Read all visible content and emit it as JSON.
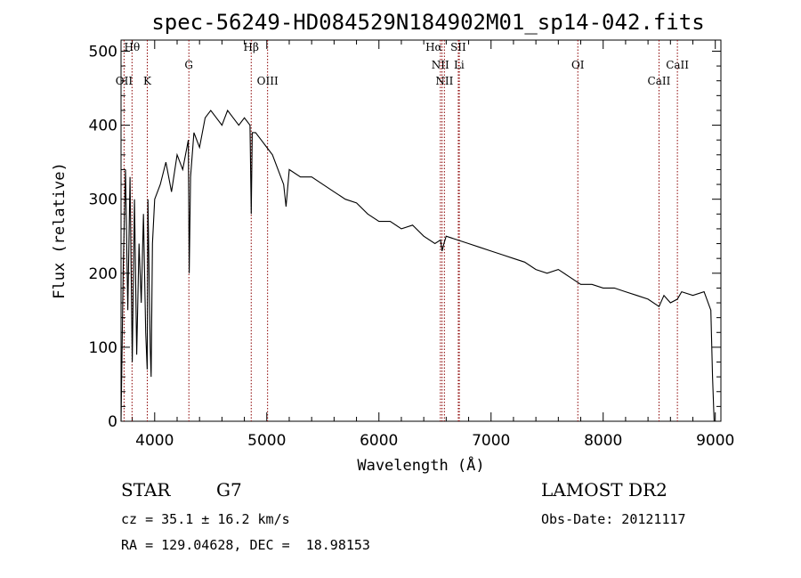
{
  "chart_data": {
    "type": "line",
    "title": "spec-56249-HD084529N184902M01_sp14-042.fits",
    "xlabel": "Wavelength (Å)",
    "ylabel": "Flux (relative)",
    "xlim": [
      3700,
      9050
    ],
    "ylim": [
      0,
      515
    ],
    "x_ticks": [
      4000,
      5000,
      6000,
      7000,
      8000,
      9000
    ],
    "y_ticks": [
      0,
      100,
      200,
      300,
      400,
      500
    ],
    "grid": false,
    "line_color": "#000000",
    "marker_color": "#8b0000",
    "series": [
      {
        "x": [
          3700,
          3720,
          3740,
          3760,
          3780,
          3800,
          3820,
          3840,
          3860,
          3880,
          3900,
          3920,
          3933,
          3940,
          3960,
          3968,
          3980,
          4000,
          4050,
          4100,
          4150,
          4200,
          4250,
          4300,
          4308,
          4320,
          4350,
          4400,
          4450,
          4500,
          4550,
          4600,
          4650,
          4700,
          4750,
          4800,
          4850,
          4861,
          4870,
          4900,
          4950,
          5000,
          5050,
          5100,
          5150,
          5172,
          5200,
          5300,
          5400,
          5500,
          5600,
          5700,
          5800,
          5900,
          6000,
          6100,
          6200,
          6300,
          6400,
          6500,
          6550,
          6563,
          6580,
          6600,
          6700,
          6800,
          6900,
          7000,
          7100,
          7200,
          7300,
          7400,
          7500,
          7600,
          7700,
          7800,
          7900,
          8000,
          8100,
          8200,
          8300,
          8400,
          8498,
          8542,
          8600,
          8662,
          8700,
          8800,
          8900,
          8960,
          8975,
          8990
        ],
        "y": [
          0,
          210,
          340,
          150,
          330,
          80,
          300,
          90,
          240,
          160,
          280,
          120,
          70,
          300,
          100,
          60,
          240,
          300,
          320,
          350,
          310,
          360,
          340,
          380,
          200,
          330,
          390,
          370,
          410,
          420,
          410,
          400,
          420,
          410,
          400,
          410,
          400,
          280,
          390,
          390,
          380,
          370,
          360,
          340,
          320,
          290,
          340,
          330,
          330,
          320,
          310,
          300,
          295,
          280,
          270,
          270,
          260,
          265,
          250,
          240,
          245,
          230,
          240,
          250,
          245,
          240,
          235,
          230,
          225,
          220,
          215,
          205,
          200,
          205,
          195,
          185,
          185,
          180,
          180,
          175,
          170,
          165,
          155,
          170,
          160,
          165,
          175,
          170,
          175,
          150,
          60,
          0
        ]
      }
    ],
    "lines": [
      {
        "name": "Hθ",
        "x": 3798
      },
      {
        "name": "OII",
        "x": 3727
      },
      {
        "name": "K",
        "x": 3934
      },
      {
        "name": "G",
        "x": 4305
      },
      {
        "name": "Hβ",
        "x": 4861
      },
      {
        "name": "OIII",
        "x": 5007
      },
      {
        "name": "Hα",
        "x": 6563
      },
      {
        "name": "NII",
        "x": 6548
      },
      {
        "name": "NII",
        "x": 6584
      },
      {
        "name": "SII",
        "x": 6717
      },
      {
        "name": "Li",
        "x": 6708
      },
      {
        "name": "OI",
        "x": 7774
      },
      {
        "name": "CaII",
        "x": 8498
      },
      {
        "name": "CaII",
        "x": 8662
      }
    ]
  },
  "info": {
    "object_class": "STAR",
    "subclass": "G7",
    "survey": "LAMOST DR2",
    "cz": "cz = 35.1 ± 16.2 km/s",
    "obs_date": "Obs-Date: 20121117",
    "coords": "RA = 129.04628, DEC =  18.98153"
  }
}
